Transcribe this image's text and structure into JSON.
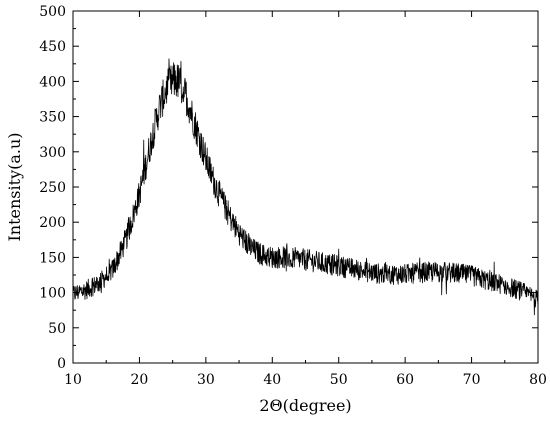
{
  "chart_data": {
    "type": "line",
    "title": "",
    "xlabel": "2Θ(degree)",
    "ylabel": "Intensity(a.u)",
    "xlim": [
      10,
      80
    ],
    "ylim": [
      0,
      500
    ],
    "x_ticks": [
      10,
      20,
      30,
      40,
      50,
      60,
      70,
      80
    ],
    "y_ticks": [
      0,
      50,
      100,
      150,
      200,
      250,
      300,
      350,
      400,
      450,
      500
    ],
    "grid": false,
    "legend": "none",
    "line_color": "#000000",
    "series": [
      {
        "x": [
          10,
          12,
          14,
          16,
          18,
          20,
          21,
          22,
          23,
          24,
          25,
          25.5,
          26,
          27,
          28,
          29,
          30,
          31,
          32,
          33,
          34,
          35,
          36,
          37,
          38,
          39,
          40,
          42,
          44,
          46,
          48,
          50,
          52,
          54,
          56,
          58,
          60,
          62,
          64,
          66,
          68,
          70,
          72,
          74,
          76,
          78,
          80
        ],
        "values": [
          98,
          104,
          114,
          133,
          175,
          240,
          283,
          325,
          362,
          388,
          400,
          402,
          398,
          380,
          350,
          320,
          290,
          263,
          240,
          220,
          200,
          185,
          172,
          162,
          156,
          152,
          150,
          150,
          148,
          145,
          141,
          138,
          134,
          130,
          127,
          126,
          126,
          128,
          129,
          129,
          127,
          124,
          118,
          113,
          107,
          100,
          90
        ]
      }
    ]
  }
}
